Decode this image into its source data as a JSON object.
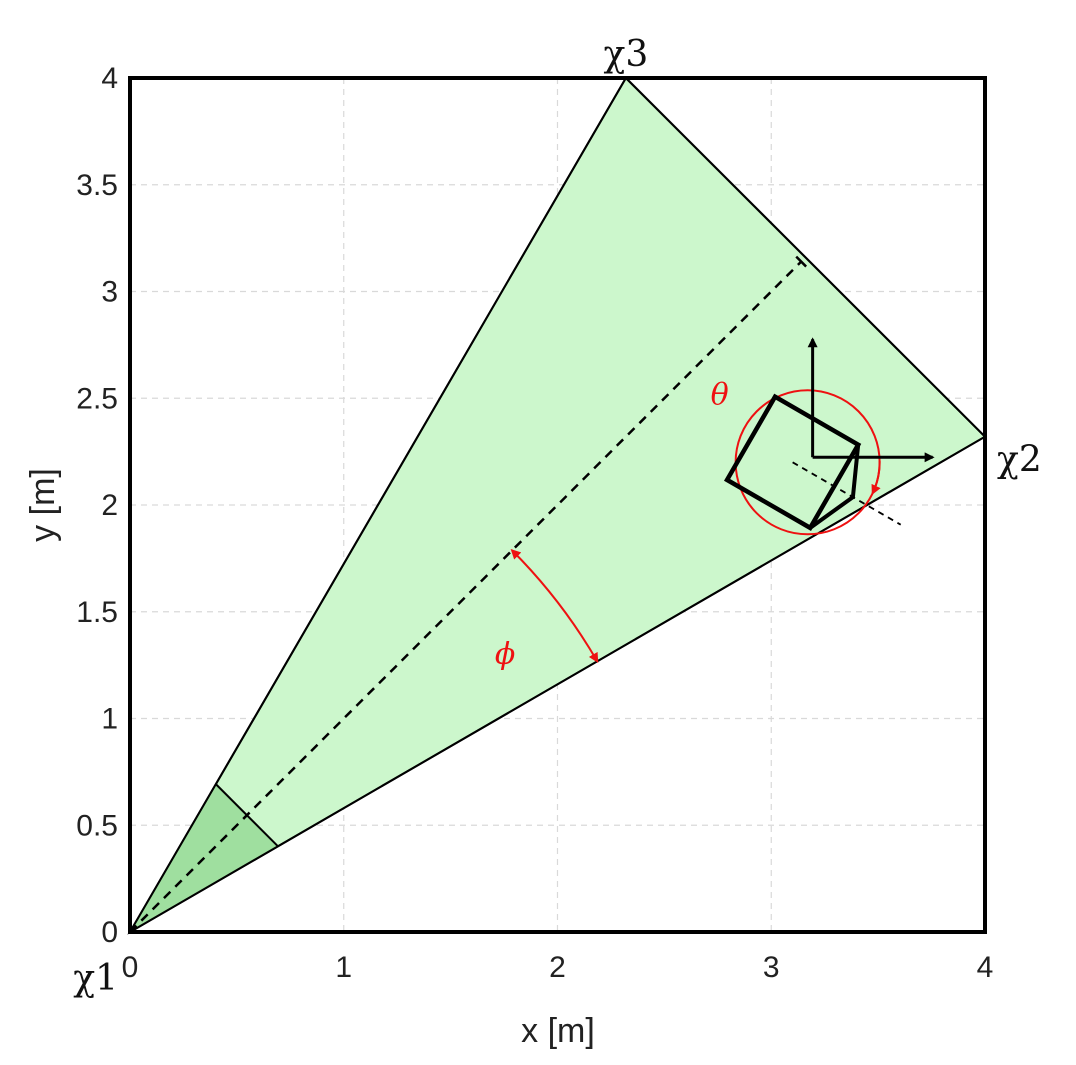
{
  "axes": {
    "xlabel": "x [m]",
    "ylabel": "y [m]",
    "xlim": [
      0,
      4
    ],
    "ylim": [
      0,
      4
    ],
    "xticks": [
      {
        "value": 0,
        "label": "0"
      },
      {
        "value": 1,
        "label": "1"
      },
      {
        "value": 2,
        "label": "2"
      },
      {
        "value": 3,
        "label": "3"
      },
      {
        "value": 4,
        "label": "4"
      }
    ],
    "yticks": [
      {
        "value": 0,
        "label": "0"
      },
      {
        "value": 0.5,
        "label": "0.5"
      },
      {
        "value": 1,
        "label": "1"
      },
      {
        "value": 1.5,
        "label": "1.5"
      },
      {
        "value": 2,
        "label": "2"
      },
      {
        "value": 2.5,
        "label": "2.5"
      },
      {
        "value": 3,
        "label": "3"
      },
      {
        "value": 3.5,
        "label": "3.5"
      },
      {
        "value": 4,
        "label": "4"
      }
    ],
    "grid": true
  },
  "region": {
    "vertices": [
      {
        "name": "χ1",
        "x": 0,
        "y": 0
      },
      {
        "name": "χ2",
        "x": 4,
        "y": 2.32
      },
      {
        "name": "χ3",
        "x": 2.32,
        "y": 4
      }
    ],
    "fill_color": "#ccf7cc",
    "near_zone_color": "#9fdf9f",
    "near_zone_radius": 0.8
  },
  "bisector": {
    "from": [
      0,
      0
    ],
    "to": [
      3.14,
      3.14
    ]
  },
  "angles": {
    "phi_label": "ϕ",
    "theta_label": "θ",
    "annotation_color": "#ee1111"
  },
  "robot": {
    "center": [
      3.1,
      2.2
    ],
    "heading_deg": -30,
    "frame_label_color": "#000000"
  }
}
